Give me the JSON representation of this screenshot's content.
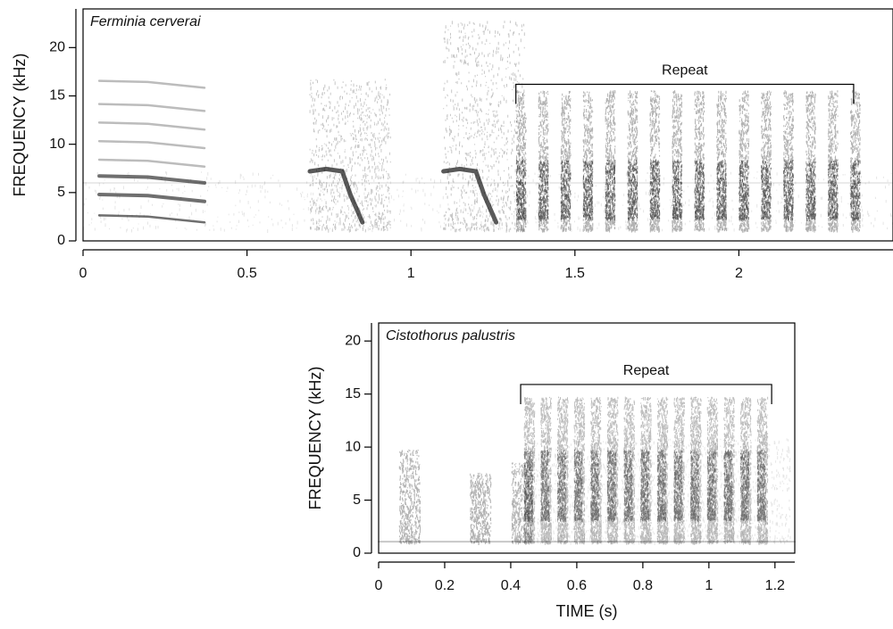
{
  "chart_data": [
    {
      "type": "spectrogram",
      "title": "Ferminia cerverai",
      "ylabel": "FREQUENCY (kHz)",
      "xlim": [
        0,
        2.47
      ],
      "xticks": [
        0,
        0.5,
        1,
        1.5,
        2
      ],
      "ylim": [
        0,
        24
      ],
      "yticks": [
        0,
        5,
        10,
        15,
        20
      ],
      "annotations": [
        {
          "text": "Repeat",
          "x": [
            1.32,
            2.35
          ],
          "y": 16.2
        }
      ]
    },
    {
      "type": "spectrogram",
      "title": "Cistothorus palustris",
      "ylabel": "FREQUENCY (kHz)",
      "xlabel": "TIME (s)",
      "xlim": [
        0,
        1.26
      ],
      "xticks": [
        0,
        0.2,
        0.4,
        0.6,
        0.8,
        1,
        1.2
      ],
      "ylim": [
        0,
        21.7
      ],
      "yticks": [
        0,
        5,
        10,
        15,
        20
      ],
      "annotations": [
        {
          "text": "Repeat",
          "x": [
            0.43,
            1.19
          ],
          "y": 15.9
        }
      ]
    }
  ]
}
